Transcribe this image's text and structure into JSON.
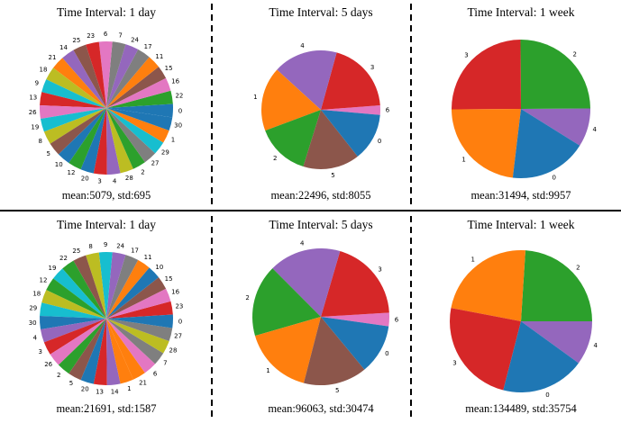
{
  "palette": [
    "#1f77b4",
    "#ff7f0e",
    "#2ca02c",
    "#d62728",
    "#9467bd",
    "#8c564b",
    "#e377c2",
    "#7f7f7f",
    "#bcbd22",
    "#17becf"
  ],
  "chart_data": [
    {
      "type": "pie",
      "title": "Time Interval: 1 day",
      "stats": "mean:5079, std:695",
      "labels": [
        "0",
        "1",
        "2",
        "3",
        "4",
        "5",
        "6",
        "7",
        "8",
        "9",
        "10",
        "11",
        "12",
        "13",
        "14",
        "15",
        "16",
        "17",
        "18",
        "19",
        "20",
        "21",
        "22",
        "23",
        "24",
        "25",
        "26",
        "27",
        "28",
        "29",
        "30"
      ],
      "values": [
        1,
        1,
        1,
        1,
        1,
        1,
        1,
        1,
        1,
        1,
        1,
        1,
        1,
        1,
        1,
        1,
        1,
        1,
        1,
        1,
        1,
        1,
        1,
        1,
        1,
        1,
        1,
        1,
        1,
        1,
        1
      ],
      "label_order_ccw_from_east": [
        "22",
        "16",
        "15",
        "11",
        "17",
        "24",
        "7",
        "6",
        "23",
        "25",
        "14",
        "21",
        "18",
        "9",
        "13",
        "26",
        "19",
        "8",
        "5",
        "10",
        "12",
        "20",
        "3",
        "4",
        "28",
        "2",
        "27",
        "29",
        "1",
        "30",
        "0"
      ],
      "start_angle_deg": 3.5
    },
    {
      "type": "pie",
      "title": "Time Interval: 5 days",
      "stats": "mean:22496, std:8055",
      "labels": [
        "0",
        "1",
        "2",
        "3",
        "4",
        "5",
        "6"
      ],
      "label_order_ccw_from_east": [
        "6",
        "3",
        "4",
        "1",
        "2",
        "5",
        "0"
      ],
      "values_in_order": [
        2.6,
        19.5,
        17.5,
        17.5,
        14.5,
        15.4,
        13.0
      ],
      "start_angle_deg": -5
    },
    {
      "type": "pie",
      "title": "Time Interval: 1 week",
      "stats": "mean:31494, std:9957",
      "labels": [
        "0",
        "1",
        "2",
        "3",
        "4"
      ],
      "label_order_ccw_from_east": [
        "4",
        "2",
        "3",
        "1",
        "0"
      ],
      "values_in_order": [
        9.0,
        25.0,
        25.0,
        23.0,
        18.0
      ],
      "start_angle_deg": -32
    },
    {
      "type": "pie",
      "title": "Time Interval: 1 day",
      "stats": "mean:21691, std:1587",
      "labels": [
        "0",
        "1",
        "2",
        "3",
        "4",
        "5",
        "6",
        "7",
        "8",
        "9",
        "10",
        "11",
        "12",
        "13",
        "14",
        "15",
        "16",
        "17",
        "18",
        "19",
        "20",
        "21",
        "22",
        "23",
        "24",
        "25",
        "26",
        "27",
        "28",
        "29",
        "30"
      ],
      "label_order_ccw_from_east": [
        "23",
        "16",
        "15",
        "10",
        "11",
        "17",
        "24",
        "9",
        "8",
        "25",
        "22",
        "19",
        "12",
        "18",
        "29",
        "30",
        "4",
        "3",
        "26",
        "2",
        "5",
        "20",
        "13",
        "14",
        "1",
        "21",
        "6",
        "7",
        "28",
        "27",
        "0"
      ],
      "values": [
        1,
        1,
        1,
        1,
        1,
        1,
        1,
        1,
        1,
        1,
        1,
        1,
        1,
        1,
        1,
        1,
        1,
        1,
        1,
        1,
        1,
        1,
        1,
        1,
        1,
        1,
        1,
        1,
        1,
        1,
        1
      ],
      "start_angle_deg": 3.5
    },
    {
      "type": "pie",
      "title": "Time Interval: 5 days",
      "stats": "mean:96063, std:30474",
      "labels": [
        "0",
        "1",
        "2",
        "3",
        "4",
        "5",
        "6"
      ],
      "label_order_ccw_from_east": [
        "6",
        "3",
        "4",
        "2",
        "1",
        "5",
        "0"
      ],
      "values_in_order": [
        3.2,
        19.5,
        17.0,
        17.0,
        16.5,
        15.0,
        11.8
      ],
      "start_angle_deg": -8
    },
    {
      "type": "pie",
      "title": "Time Interval: 1 week",
      "stats": "mean:134489, std:35754",
      "labels": [
        "0",
        "1",
        "2",
        "3",
        "4"
      ],
      "label_order_ccw_from_east": [
        "4",
        "2",
        "1",
        "3",
        "0"
      ],
      "values_in_order": [
        10.0,
        24.0,
        23.0,
        24.0,
        19.0
      ],
      "start_angle_deg": -36
    }
  ]
}
